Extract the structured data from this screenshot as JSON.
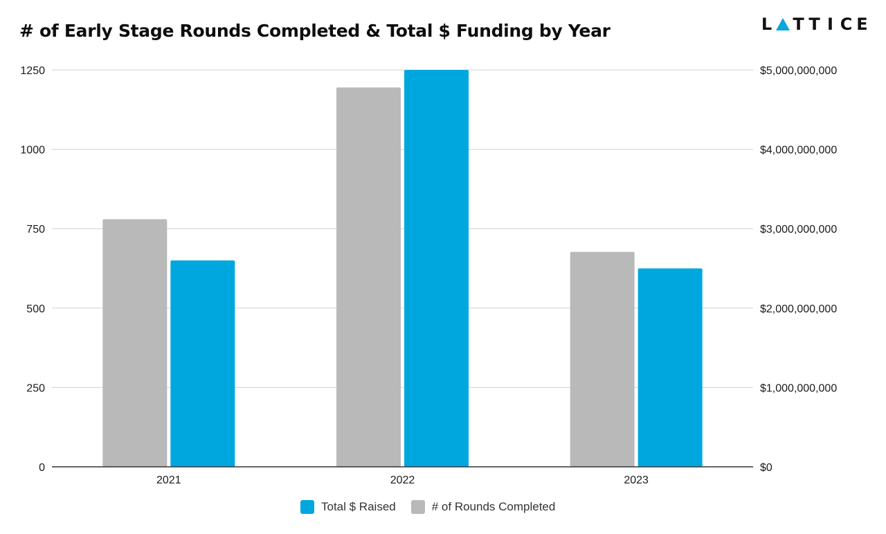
{
  "brand": {
    "logo_text": "LATTICE",
    "accent": "#0aa6de"
  },
  "chart_data": {
    "type": "bar",
    "title": "# of Early Stage Rounds Completed & Total $ Funding by Year",
    "categories": [
      "2021",
      "2022",
      "2023"
    ],
    "series": [
      {
        "name": "# of Rounds Completed",
        "axis": "left",
        "color": "#b9b9b9",
        "values": [
          780,
          1195,
          677
        ]
      },
      {
        "name": "Total $ Raised",
        "axis": "right",
        "color": "#00a7de",
        "values": [
          2600000000,
          5000000000,
          2500000000
        ]
      }
    ],
    "bar_order": [
      "# of Rounds Completed",
      "Total $ Raised"
    ],
    "legend_order": [
      "Total $ Raised",
      "# of Rounds Completed"
    ],
    "y_left": {
      "ylim": [
        0,
        1250
      ],
      "ticks": [
        "0",
        "250",
        "500",
        "750",
        "1000",
        "1250"
      ]
    },
    "y_right": {
      "ylim": [
        0,
        5000000000
      ],
      "ticks": [
        "$0",
        "$1,000,000,000",
        "$2,000,000,000",
        "$3,000,000,000",
        "$4,000,000,000",
        "$5,000,000,000"
      ]
    },
    "xlabel": "",
    "ylabel": "",
    "grid": true,
    "legend_position": "bottom"
  }
}
